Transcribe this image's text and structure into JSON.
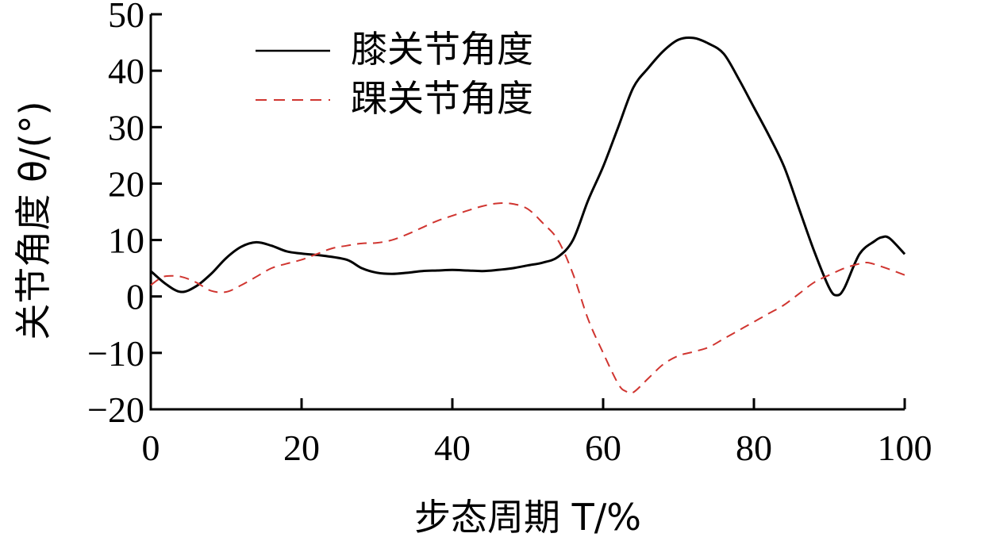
{
  "chart_data": {
    "type": "line",
    "title": "",
    "xlabel": "步态周期 T/%",
    "ylabel": "关节角度 θ/(°)",
    "xlim": [
      0,
      100
    ],
    "ylim": [
      -20,
      50
    ],
    "xticks": [
      0,
      20,
      40,
      60,
      80,
      100
    ],
    "yticks": [
      -20,
      -10,
      0,
      10,
      20,
      30,
      40,
      50
    ],
    "legend_position": "top-left",
    "series": [
      {
        "name": "膝关节角度",
        "color": "#000000",
        "style": "solid",
        "x": [
          0,
          2,
          4,
          6,
          8,
          10,
          12,
          14,
          16,
          18,
          20,
          23,
          26,
          28,
          30,
          32,
          34,
          36,
          38,
          40,
          42,
          44,
          46,
          48,
          50,
          52,
          54,
          56,
          58,
          60,
          62,
          64,
          66,
          68,
          70,
          72,
          74,
          76,
          78,
          80,
          82,
          84,
          86,
          88,
          90,
          91,
          92,
          94,
          96,
          97,
          98,
          100
        ],
        "y": [
          4.5,
          2.2,
          0.8,
          1.8,
          4.0,
          6.8,
          8.8,
          9.6,
          9.0,
          8.0,
          7.6,
          7.2,
          6.5,
          5.0,
          4.2,
          4.0,
          4.2,
          4.5,
          4.6,
          4.7,
          4.6,
          4.5,
          4.7,
          5.0,
          5.5,
          6.0,
          7.0,
          10.0,
          17.0,
          23.0,
          30.0,
          37.0,
          40.5,
          43.5,
          45.5,
          45.8,
          44.8,
          43.0,
          38.5,
          33.5,
          28.5,
          23.0,
          15.5,
          8.0,
          1.5,
          0.2,
          1.5,
          7.5,
          9.8,
          10.5,
          10.3,
          7.5
        ]
      },
      {
        "name": "踝关节角度",
        "color": "#d03530",
        "style": "dashed",
        "x": [
          0,
          1,
          2,
          4,
          6,
          8,
          10,
          12,
          14,
          16,
          18,
          20,
          22,
          24,
          26,
          28,
          30,
          32,
          34,
          36,
          38,
          40,
          42,
          44,
          46,
          48,
          50,
          52,
          54,
          56,
          58,
          60,
          62,
          63,
          64,
          66,
          68,
          70,
          72,
          74,
          76,
          78,
          80,
          82,
          84,
          86,
          88,
          90,
          92,
          94,
          95,
          96,
          98,
          100
        ],
        "y": [
          2.0,
          3.0,
          3.6,
          3.5,
          2.5,
          1.0,
          0.8,
          2.0,
          3.5,
          5.0,
          5.8,
          6.5,
          7.5,
          8.5,
          9.0,
          9.4,
          9.5,
          10.0,
          11.0,
          12.2,
          13.4,
          14.3,
          15.2,
          16.0,
          16.5,
          16.4,
          15.5,
          13.0,
          10.0,
          4.0,
          -4.0,
          -10.0,
          -15.5,
          -16.8,
          -17.0,
          -14.5,
          -12.0,
          -10.5,
          -9.8,
          -9.0,
          -7.5,
          -6.0,
          -4.5,
          -3.0,
          -1.5,
          0.5,
          2.5,
          3.8,
          5.0,
          5.8,
          6.0,
          5.7,
          4.8,
          3.8
        ]
      }
    ]
  }
}
